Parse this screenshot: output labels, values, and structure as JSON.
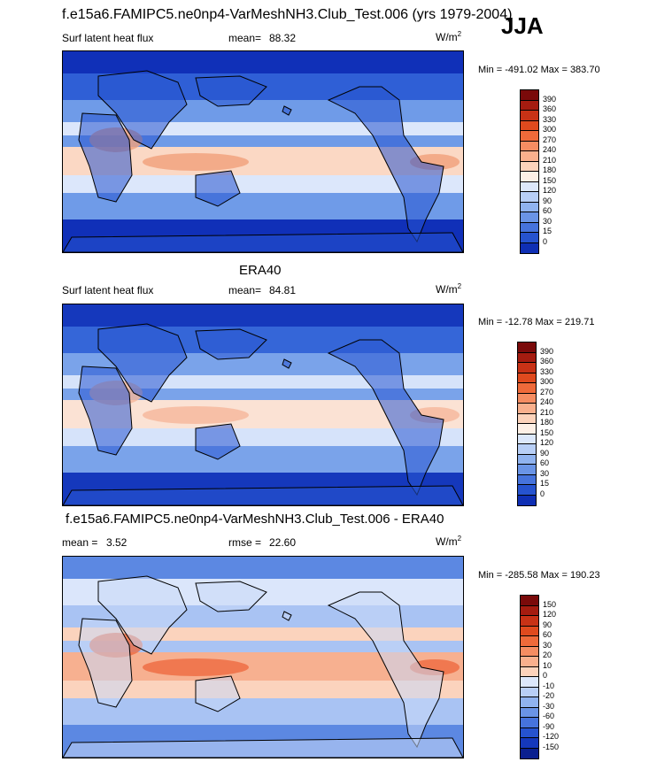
{
  "figure": {
    "main_title": "f.e15a6.FAMIPC5.ne0np4-VarMeshNH3.Club_Test.006 (yrs 1979-2004)",
    "season": "JJA"
  },
  "panels": [
    {
      "title": "",
      "left_label": "Surf latent heat flux",
      "stat_label": "mean=",
      "stat_value": "88.32",
      "stat2_label": "",
      "stat2_value": "",
      "units_base": "W/m",
      "units_exp": "2",
      "minmax": "Min = -491.02 Max = 383.70",
      "colorbar": {
        "labels": [
          "390",
          "360",
          "330",
          "300",
          "270",
          "240",
          "210",
          "180",
          "150",
          "120",
          "90",
          "60",
          "30",
          "15",
          "0"
        ],
        "colors": [
          "#7a0a0a",
          "#a51c10",
          "#c83216",
          "#e04a1e",
          "#ef6a3a",
          "#f58d62",
          "#f9b08d",
          "#fcd3bb",
          "#fdf0e6",
          "#dce8fb",
          "#b8cff6",
          "#90b3ef",
          "#6a94e6",
          "#4673dc",
          "#2653cf",
          "#0f2fb4"
        ]
      },
      "map_colors": {
        "ocean": "#2f5fd6",
        "low": "#1030b8",
        "mid": "#6f9be8",
        "high": "#dce7fb",
        "hot": "#f1a07a",
        "warm": "#fbd8c4",
        "land": "#2653cf"
      }
    },
    {
      "title": "ERA40",
      "left_label": "Surf latent heat flux",
      "stat_label": "mean=",
      "stat_value": "84.81",
      "stat2_label": "",
      "stat2_value": "",
      "units_base": "W/m",
      "units_exp": "2",
      "minmax": "Min = -12.78 Max = 219.71",
      "colorbar": {
        "labels": [
          "390",
          "360",
          "330",
          "300",
          "270",
          "240",
          "210",
          "180",
          "150",
          "120",
          "90",
          "60",
          "30",
          "15",
          "0"
        ],
        "colors": [
          "#7a0a0a",
          "#a51c10",
          "#c83216",
          "#e04a1e",
          "#ef6a3a",
          "#f58d62",
          "#f9b08d",
          "#fcd3bb",
          "#fdf0e6",
          "#dce8fb",
          "#b8cff6",
          "#90b3ef",
          "#6a94e6",
          "#4673dc",
          "#2653cf",
          "#0f2fb4"
        ]
      },
      "map_colors": {
        "ocean": "#3566d8",
        "low": "#1538bc",
        "mid": "#7aa3ea",
        "high": "#d6e3fa",
        "hot": "#f6b69a",
        "warm": "#fbe2d4",
        "land": "#2a58d2"
      }
    },
    {
      "title": "f.e15a6.FAMIPC5.ne0np4-VarMeshNH3.Club_Test.006 - ERA40",
      "left_label": "",
      "stat_label": "mean =",
      "stat_value": "3.52",
      "stat2_label": "rmse =",
      "stat2_value": "22.60",
      "units_base": "W/m",
      "units_exp": "2",
      "minmax": "Min = -285.58 Max = 190.23",
      "colorbar": {
        "labels": [
          "150",
          "120",
          "90",
          "60",
          "30",
          "20",
          "10",
          "0",
          "-10",
          "-20",
          "-30",
          "-60",
          "-90",
          "-120",
          "-150"
        ],
        "colors": [
          "#7a0a0a",
          "#a51c10",
          "#c83216",
          "#e04a1e",
          "#ef6a3a",
          "#f58d62",
          "#f9b08d",
          "#fcd3bb",
          "#dce8fb",
          "#b8cff6",
          "#90b3ef",
          "#6a94e6",
          "#4673dc",
          "#2653cf",
          "#1538bc",
          "#0a1f8f"
        ]
      },
      "map_colors": {
        "ocean": "#dbe6fb",
        "low": "#5c88e2",
        "mid": "#a9c3f3",
        "high": "#fbd3bd",
        "hot": "#ee6a40",
        "warm": "#f7b090",
        "land": "#c9d9f7"
      }
    }
  ]
}
